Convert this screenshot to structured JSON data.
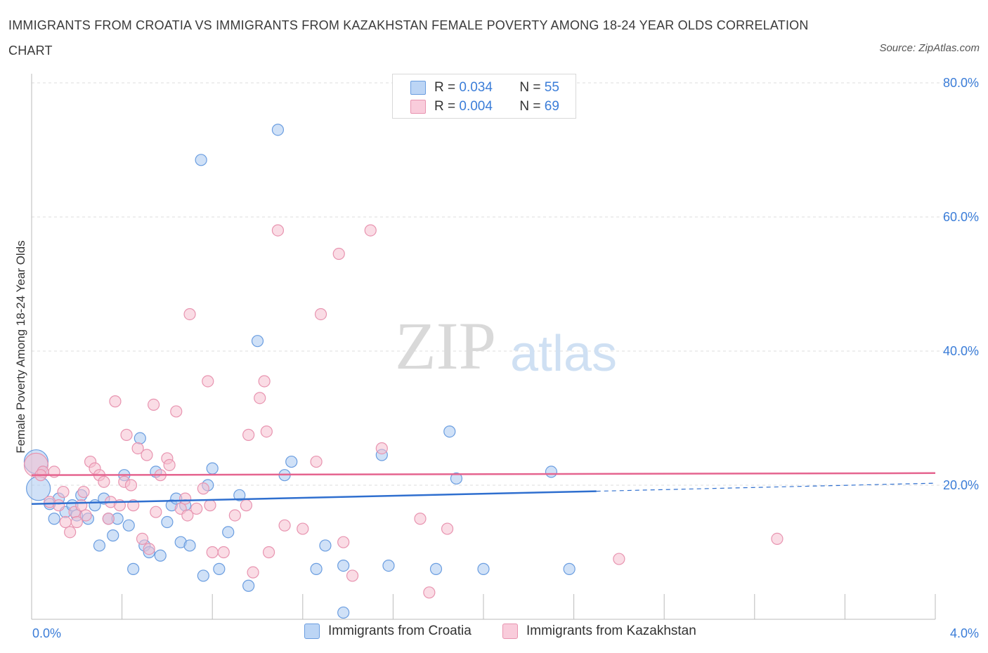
{
  "title": "IMMIGRANTS FROM CROATIA VS IMMIGRANTS FROM KAZAKHSTAN FEMALE POVERTY AMONG 18-24 YEAR OLDS CORRELATION CHART",
  "source": "Source: ZipAtlas.com",
  "watermark": {
    "zip": "ZIP",
    "atlas": "atlas"
  },
  "legend": {
    "r_label": "R =",
    "n_label": "N =",
    "croatia": {
      "r": "0.034",
      "n": "55"
    },
    "kazakhstan": {
      "r": "0.004",
      "n": "69"
    }
  },
  "colors": {
    "croatia_fill": "#a9c8f0",
    "croatia_stroke": "#6a9de0",
    "croatia_line": "#2f6fcf",
    "kazakhstan_fill": "#f6bfd0",
    "kazakhstan_stroke": "#e894b0",
    "kazakhstan_line": "#e5648f",
    "axis_label": "#3b7dd8"
  },
  "chart_data": {
    "type": "scatter",
    "title": "IMMIGRANTS FROM CROATIA VS IMMIGRANTS FROM KAZAKHSTAN FEMALE POVERTY AMONG 18-24 YEAR OLDS CORRELATION CHART",
    "xlabel": "",
    "ylabel": "Female Poverty Among 18-24 Year Olds",
    "xlim": [
      0,
      4.0
    ],
    "ylim": [
      0,
      80
    ],
    "x_tick_labels": [
      "0.0%",
      "4.0%"
    ],
    "y_tick_labels": [
      "20.0%",
      "40.0%",
      "60.0%",
      "80.0%"
    ],
    "y_ticks": [
      20,
      40,
      60,
      80
    ],
    "grid": true,
    "series": [
      {
        "name": "Immigrants from Croatia",
        "trend": {
          "x": [
            0,
            2.5
          ],
          "y": [
            17.2,
            19.1
          ],
          "dashed_to": [
            4.0,
            20.3
          ]
        },
        "points": [
          [
            0.02,
            23.5,
            1
          ],
          [
            0.03,
            19.5,
            1
          ],
          [
            0.05,
            22.0,
            0
          ],
          [
            0.08,
            17.2,
            0
          ],
          [
            0.1,
            15.0,
            0
          ],
          [
            0.12,
            18.0,
            0
          ],
          [
            0.15,
            16.0,
            0
          ],
          [
            0.18,
            17.0,
            0
          ],
          [
            0.2,
            15.5,
            0
          ],
          [
            0.22,
            18.5,
            0
          ],
          [
            0.25,
            15.0,
            0
          ],
          [
            0.28,
            17.0,
            0
          ],
          [
            0.3,
            11.0,
            0
          ],
          [
            0.32,
            18.0,
            0
          ],
          [
            0.34,
            15.0,
            0
          ],
          [
            0.36,
            12.5,
            0
          ],
          [
            0.38,
            15.0,
            0
          ],
          [
            0.41,
            21.5,
            0
          ],
          [
            0.43,
            14.0,
            0
          ],
          [
            0.45,
            7.5,
            0
          ],
          [
            0.48,
            27.0,
            0
          ],
          [
            0.5,
            11.0,
            0
          ],
          [
            0.52,
            10.0,
            0
          ],
          [
            0.55,
            22.0,
            0
          ],
          [
            0.57,
            9.5,
            0
          ],
          [
            0.6,
            14.5,
            0
          ],
          [
            0.62,
            17.0,
            0
          ],
          [
            0.64,
            18.0,
            0
          ],
          [
            0.66,
            11.5,
            0
          ],
          [
            0.68,
            17.0,
            0
          ],
          [
            0.7,
            11.0,
            0
          ],
          [
            0.75,
            68.5,
            0
          ],
          [
            0.76,
            6.5,
            0
          ],
          [
            0.78,
            20.0,
            0
          ],
          [
            0.8,
            22.5,
            0
          ],
          [
            0.83,
            7.5,
            0
          ],
          [
            0.87,
            13.0,
            0
          ],
          [
            0.92,
            18.5,
            0
          ],
          [
            0.96,
            5.0,
            0
          ],
          [
            1.0,
            41.5,
            0
          ],
          [
            1.09,
            73.0,
            0
          ],
          [
            1.12,
            21.5,
            0
          ],
          [
            1.15,
            23.5,
            0
          ],
          [
            1.26,
            7.5,
            0
          ],
          [
            1.3,
            11.0,
            0
          ],
          [
            1.38,
            8.0,
            0
          ],
          [
            1.38,
            1.0,
            0
          ],
          [
            1.55,
            24.5,
            0
          ],
          [
            1.58,
            8.0,
            0
          ],
          [
            1.79,
            7.5,
            0
          ],
          [
            1.85,
            28.0,
            0
          ],
          [
            1.88,
            21.0,
            0
          ],
          [
            2.0,
            7.5,
            0
          ],
          [
            2.3,
            22.0,
            0
          ],
          [
            2.38,
            7.5,
            0
          ]
        ]
      },
      {
        "name": "Immigrants from Kazakhstan",
        "trend": {
          "x": [
            0,
            4.0
          ],
          "y": [
            21.5,
            21.8
          ]
        },
        "points": [
          [
            0.02,
            23.0,
            1
          ],
          [
            0.05,
            22.0,
            0
          ],
          [
            0.08,
            17.5,
            0
          ],
          [
            0.1,
            22.0,
            0
          ],
          [
            0.12,
            17.0,
            0
          ],
          [
            0.14,
            19.0,
            0
          ],
          [
            0.15,
            14.5,
            0
          ],
          [
            0.17,
            13.0,
            0
          ],
          [
            0.19,
            16.0,
            0
          ],
          [
            0.2,
            14.5,
            0
          ],
          [
            0.22,
            17.0,
            0
          ],
          [
            0.23,
            19.0,
            0
          ],
          [
            0.24,
            15.5,
            0
          ],
          [
            0.26,
            23.5,
            0
          ],
          [
            0.28,
            22.5,
            0
          ],
          [
            0.3,
            21.5,
            0
          ],
          [
            0.32,
            20.5,
            0
          ],
          [
            0.34,
            15.0,
            0
          ],
          [
            0.35,
            17.5,
            0
          ],
          [
            0.37,
            32.5,
            0
          ],
          [
            0.39,
            17.0,
            0
          ],
          [
            0.41,
            20.5,
            0
          ],
          [
            0.42,
            27.5,
            0
          ],
          [
            0.44,
            20.0,
            0
          ],
          [
            0.45,
            17.0,
            0
          ],
          [
            0.47,
            25.5,
            0
          ],
          [
            0.49,
            12.0,
            0
          ],
          [
            0.51,
            24.5,
            0
          ],
          [
            0.52,
            10.5,
            0
          ],
          [
            0.54,
            32.0,
            0
          ],
          [
            0.55,
            16.0,
            0
          ],
          [
            0.57,
            21.5,
            0
          ],
          [
            0.6,
            24.0,
            0
          ],
          [
            0.61,
            23.0,
            0
          ],
          [
            0.64,
            31.0,
            0
          ],
          [
            0.66,
            16.5,
            0
          ],
          [
            0.68,
            18.0,
            0
          ],
          [
            0.69,
            15.5,
            0
          ],
          [
            0.7,
            45.5,
            0
          ],
          [
            0.73,
            16.5,
            0
          ],
          [
            0.76,
            19.5,
            0
          ],
          [
            0.78,
            35.5,
            0
          ],
          [
            0.79,
            17.0,
            0
          ],
          [
            0.8,
            10.0,
            0
          ],
          [
            0.85,
            10.0,
            0
          ],
          [
            0.9,
            15.5,
            0
          ],
          [
            0.95,
            17.0,
            0
          ],
          [
            0.96,
            27.5,
            0
          ],
          [
            0.98,
            7.0,
            0
          ],
          [
            1.01,
            33.0,
            0
          ],
          [
            1.03,
            35.5,
            0
          ],
          [
            1.04,
            28.0,
            0
          ],
          [
            1.05,
            10.0,
            0
          ],
          [
            1.09,
            58.0,
            0
          ],
          [
            1.12,
            14.0,
            0
          ],
          [
            1.2,
            13.5,
            0
          ],
          [
            1.26,
            23.5,
            0
          ],
          [
            1.28,
            45.5,
            0
          ],
          [
            1.36,
            54.5,
            0
          ],
          [
            1.38,
            11.5,
            0
          ],
          [
            1.42,
            6.5,
            0
          ],
          [
            1.5,
            58.0,
            0
          ],
          [
            1.55,
            25.5,
            0
          ],
          [
            1.72,
            15.0,
            0
          ],
          [
            1.76,
            4.0,
            0
          ],
          [
            1.84,
            13.5,
            0
          ],
          [
            2.6,
            9.0,
            0
          ],
          [
            3.3,
            12.0,
            0
          ],
          [
            0.04,
            21.5,
            0
          ]
        ]
      }
    ]
  },
  "bottom_legend": {
    "croatia_label": "Immigrants from Croatia",
    "kazakhstan_label": "Immigrants from Kazakhstan"
  }
}
